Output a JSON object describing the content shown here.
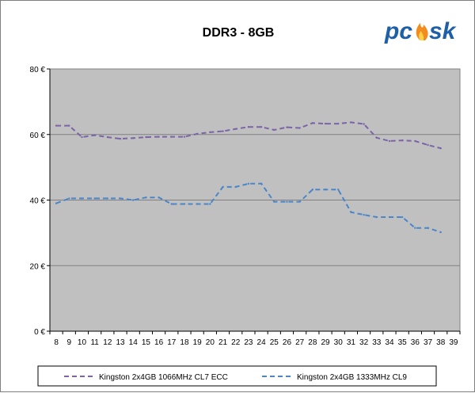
{
  "chart_data": {
    "type": "line",
    "title": "DDR3 - 8GB",
    "xlabel": "",
    "ylabel": "",
    "categories": [
      "8",
      "9",
      "10",
      "11",
      "12",
      "13",
      "14",
      "15",
      "16",
      "17",
      "18",
      "19",
      "20",
      "21",
      "22",
      "23",
      "24",
      "25",
      "26",
      "27",
      "28",
      "29",
      "30",
      "31",
      "32",
      "33",
      "34",
      "35",
      "36",
      "37",
      "38",
      "39"
    ],
    "ylim": [
      0,
      80
    ],
    "yticks": [
      0,
      20,
      40,
      60,
      80
    ],
    "ytick_labels": [
      "0 €",
      "20 €",
      "40 €",
      "60 €",
      "80 €"
    ],
    "grid": "horizontal",
    "legend_position": "bottom",
    "series": [
      {
        "name": "Kingston 2x4GB 1066MHz CL7 ECC",
        "color": "#7b64a8",
        "dash": "dashed",
        "values": [
          62.7,
          62.7,
          59.2,
          59.8,
          59.2,
          58.7,
          58.9,
          59.2,
          59.3,
          59.3,
          59.3,
          60.2,
          60.7,
          61.0,
          61.7,
          62.3,
          62.3,
          61.4,
          62.2,
          62.0,
          63.5,
          63.3,
          63.3,
          63.7,
          63.2,
          59.0,
          58.0,
          58.2,
          58.0,
          56.8,
          55.8,
          null
        ]
      },
      {
        "name": "Kingston 2x4GB 1333MHz CL9",
        "color": "#4a86c8",
        "dash": "dashed",
        "values": [
          39.0,
          40.5,
          40.5,
          40.5,
          40.5,
          40.5,
          40.0,
          40.8,
          40.8,
          38.8,
          38.8,
          38.8,
          38.8,
          44.0,
          44.0,
          45.0,
          45.0,
          39.5,
          39.5,
          39.5,
          43.2,
          43.2,
          43.2,
          36.3,
          35.5,
          34.8,
          34.8,
          34.8,
          31.5,
          31.5,
          30.2,
          null
        ]
      }
    ]
  },
  "logo": {
    "text": "pc✓sk",
    "colors": {
      "main": "#1f5fa8",
      "flame": "#f28c1e"
    }
  }
}
